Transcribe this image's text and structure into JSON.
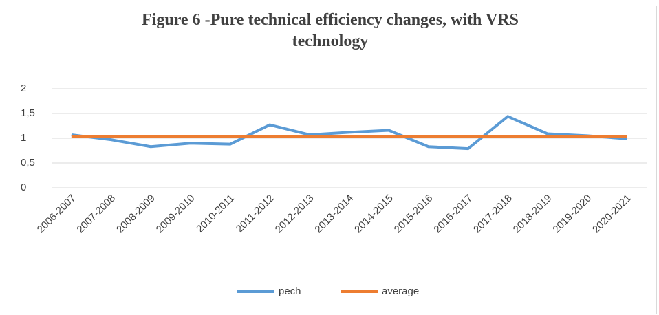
{
  "chart_data": {
    "type": "line",
    "title": "Figure 6 -Pure technical efficiency changes, with VRS technology",
    "categories": [
      "2006-2007",
      "2007-2008",
      "2008-2009",
      "2009-2010",
      "2010-2011",
      "2011-2012",
      "2012-2013",
      "2013-2014",
      "2014-2015",
      "2015-2016",
      "2016-2017",
      "2017-2018",
      "2018-2019",
      "2019-2020",
      "2020-2021"
    ],
    "series": [
      {
        "name": "pech",
        "color": "#5b9bd5",
        "values": [
          1.07,
          0.97,
          0.83,
          0.9,
          0.88,
          1.27,
          1.07,
          1.12,
          1.16,
          0.83,
          0.79,
          1.44,
          1.09,
          1.05,
          0.99
        ]
      },
      {
        "name": "average",
        "color": "#ed7d31",
        "values": [
          1.03,
          1.03,
          1.03,
          1.03,
          1.03,
          1.03,
          1.03,
          1.03,
          1.03,
          1.03,
          1.03,
          1.03,
          1.03,
          1.03,
          1.03
        ]
      }
    ],
    "ylim": [
      0,
      2
    ],
    "yticks": [
      0,
      {
        "value": 0.5,
        "label": "0,5"
      },
      1,
      {
        "value": 1.5,
        "label": "1,5"
      },
      2
    ],
    "grid": true,
    "legend": "bottom"
  }
}
